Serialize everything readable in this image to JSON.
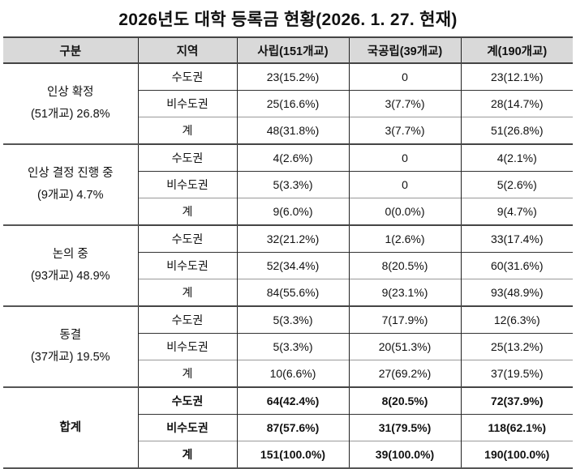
{
  "title": "2026년도 대학 등록금 현황(2026. 1. 27. 현재)",
  "headers": [
    "구분",
    "지역",
    "사립(151개교)",
    "국공립(39개교)",
    "계(190개교)"
  ],
  "groups": [
    {
      "label": "인상 확정",
      "sub": "(51개교) 26.8%",
      "bold": false,
      "rows": [
        {
          "region": "수도권",
          "private": "23(15.2%)",
          "public": "0",
          "total": "23(12.1%)"
        },
        {
          "region": "비수도권",
          "private": "25(16.6%)",
          "public": "3(7.7%)",
          "total": "28(14.7%)"
        },
        {
          "region": "계",
          "private": "48(31.8%)",
          "public": "3(7.7%)",
          "total": "51(26.8%)"
        }
      ]
    },
    {
      "label": "인상 결정 진행 중",
      "sub": "(9개교) 4.7%",
      "bold": false,
      "rows": [
        {
          "region": "수도권",
          "private": "4(2.6%)",
          "public": "0",
          "total": "4(2.1%)"
        },
        {
          "region": "비수도권",
          "private": "5(3.3%)",
          "public": "0",
          "total": "5(2.6%)"
        },
        {
          "region": "계",
          "private": "9(6.0%)",
          "public": "0(0.0%)",
          "total": "9(4.7%)"
        }
      ]
    },
    {
      "label": "논의 중",
      "sub": "(93개교) 48.9%",
      "bold": false,
      "rows": [
        {
          "region": "수도권",
          "private": "32(21.2%)",
          "public": "1(2.6%)",
          "total": "33(17.4%)"
        },
        {
          "region": "비수도권",
          "private": "52(34.4%)",
          "public": "8(20.5%)",
          "total": "60(31.6%)"
        },
        {
          "region": "계",
          "private": "84(55.6%)",
          "public": "9(23.1%)",
          "total": "93(48.9%)"
        }
      ]
    },
    {
      "label": "동결",
      "sub": "(37개교) 19.5%",
      "bold": false,
      "rows": [
        {
          "region": "수도권",
          "private": "5(3.3%)",
          "public": "7(17.9%)",
          "total": "12(6.3%)"
        },
        {
          "region": "비수도권",
          "private": "5(3.3%)",
          "public": "20(51.3%)",
          "total": "25(13.2%)"
        },
        {
          "region": "계",
          "private": "10(6.6%)",
          "public": "27(69.2%)",
          "total": "37(19.5%)"
        }
      ]
    },
    {
      "label": "합계",
      "sub": "",
      "bold": true,
      "rows": [
        {
          "region": "수도권",
          "private": "64(42.4%)",
          "public": "8(20.5%)",
          "total": "72(37.9%)"
        },
        {
          "region": "비수도권",
          "private": "87(57.6%)",
          "public": "31(79.5%)",
          "total": "118(62.1%)"
        },
        {
          "region": "계",
          "private": "151(100.0%)",
          "public": "39(100.0%)",
          "total": "190(100.0%)"
        }
      ]
    }
  ]
}
